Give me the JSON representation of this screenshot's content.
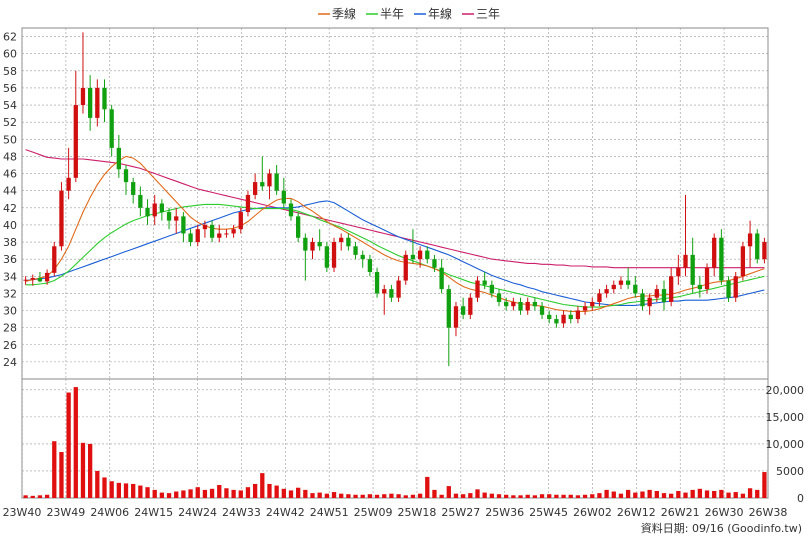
{
  "legend": [
    {
      "label": "季線",
      "color": "#e06a1a"
    },
    {
      "label": "半年",
      "color": "#2ecc2e"
    },
    {
      "label": "年線",
      "color": "#1a5fd6"
    },
    {
      "label": "三年",
      "color": "#cc1f6a"
    }
  ],
  "footer": "資料日期: 09/16  (Goodinfo.tw)",
  "colors": {
    "up": "#d01010",
    "down": "#10a010",
    "volume": "#e01010",
    "grid": "#999999"
  },
  "chart_data": [
    {
      "type": "candlestick",
      "x_tick_labels": [
        "23W40",
        "23W49",
        "24W06",
        "24W15",
        "24W24",
        "24W33",
        "24W42",
        "24W51",
        "25W09",
        "25W18",
        "25W27",
        "25W36",
        "25W45",
        "26W02",
        "26W12",
        "26W21",
        "26W30",
        "26W38"
      ],
      "ylim": [
        22,
        63
      ],
      "y_ticks": [
        24,
        26,
        28,
        30,
        32,
        34,
        36,
        38,
        40,
        42,
        44,
        46,
        48,
        50,
        52,
        54,
        56,
        58,
        60,
        62
      ],
      "grid": true,
      "legend_position": "top-center",
      "ohlc": [
        [
          33.5,
          34.0,
          33.0,
          33.6
        ],
        [
          33.6,
          34.2,
          32.9,
          33.8
        ],
        [
          33.8,
          34.5,
          33.3,
          33.4
        ],
        [
          33.4,
          34.8,
          33.0,
          34.4
        ],
        [
          34.4,
          38.0,
          34.0,
          37.5
        ],
        [
          37.5,
          45.0,
          37.0,
          44.0
        ],
        [
          44.0,
          49.0,
          43.0,
          45.5
        ],
        [
          45.5,
          58.0,
          45.0,
          54.0
        ],
        [
          54.0,
          62.5,
          53.0,
          56.0
        ],
        [
          56.0,
          57.5,
          51.0,
          52.5
        ],
        [
          52.5,
          57.0,
          51.5,
          56.0
        ],
        [
          56.0,
          57.0,
          52.0,
          53.5
        ],
        [
          53.5,
          54.0,
          48.0,
          49.0
        ],
        [
          49.0,
          50.5,
          45.5,
          46.5
        ],
        [
          46.5,
          47.0,
          43.5,
          45.0
        ],
        [
          45.0,
          45.5,
          42.5,
          43.5
        ],
        [
          43.5,
          44.5,
          41.0,
          42.0
        ],
        [
          42.0,
          43.0,
          40.0,
          41.0
        ],
        [
          41.0,
          43.5,
          40.0,
          42.5
        ],
        [
          42.5,
          43.0,
          40.5,
          41.5
        ],
        [
          41.5,
          42.0,
          39.5,
          40.5
        ],
        [
          40.5,
          42.0,
          39.0,
          41.0
        ],
        [
          41.0,
          41.5,
          38.0,
          39.0
        ],
        [
          39.0,
          39.5,
          37.5,
          38.0
        ],
        [
          38.0,
          40.0,
          37.5,
          39.5
        ],
        [
          39.5,
          40.5,
          38.5,
          40.0
        ],
        [
          40.0,
          40.5,
          38.0,
          38.5
        ],
        [
          38.5,
          40.0,
          38.0,
          39.0
        ],
        [
          39.0,
          39.5,
          38.5,
          39.0
        ],
        [
          39.0,
          40.0,
          38.5,
          39.5
        ],
        [
          39.5,
          42.0,
          39.0,
          41.5
        ],
        [
          41.5,
          44.0,
          41.0,
          43.5
        ],
        [
          43.5,
          46.0,
          43.0,
          45.0
        ],
        [
          45.0,
          48.0,
          44.0,
          44.5
        ],
        [
          44.5,
          46.5,
          43.0,
          46.0
        ],
        [
          46.0,
          47.0,
          43.5,
          44.0
        ],
        [
          44.0,
          45.5,
          42.0,
          42.5
        ],
        [
          42.5,
          43.0,
          40.5,
          41.0
        ],
        [
          41.0,
          41.5,
          38.0,
          38.5
        ],
        [
          38.5,
          39.0,
          33.5,
          37.0
        ],
        [
          37.0,
          38.5,
          36.0,
          38.0
        ],
        [
          38.0,
          39.5,
          37.0,
          37.5
        ],
        [
          37.5,
          38.0,
          34.5,
          35.0
        ],
        [
          35.0,
          38.5,
          34.5,
          38.0
        ],
        [
          38.0,
          39.0,
          37.0,
          38.5
        ],
        [
          38.5,
          39.0,
          37.0,
          37.5
        ],
        [
          37.5,
          38.0,
          36.0,
          36.5
        ],
        [
          36.5,
          37.0,
          35.0,
          36.0
        ],
        [
          36.0,
          36.5,
          34.0,
          34.5
        ],
        [
          34.5,
          35.0,
          31.5,
          32.0
        ],
        [
          32.0,
          33.0,
          29.5,
          32.5
        ],
        [
          32.5,
          33.0,
          31.0,
          31.5
        ],
        [
          31.5,
          34.0,
          31.0,
          33.5
        ],
        [
          33.5,
          37.0,
          33.0,
          36.5
        ],
        [
          36.5,
          39.5,
          35.5,
          36.0
        ],
        [
          36.0,
          37.5,
          35.0,
          37.0
        ],
        [
          37.0,
          37.5,
          35.5,
          36.0
        ],
        [
          36.0,
          36.5,
          34.5,
          35.0
        ],
        [
          35.0,
          36.0,
          32.0,
          32.5
        ],
        [
          32.5,
          33.0,
          23.5,
          28.0
        ],
        [
          28.0,
          31.0,
          27.0,
          30.5
        ],
        [
          30.5,
          31.5,
          29.0,
          29.5
        ],
        [
          29.5,
          32.0,
          29.0,
          31.5
        ],
        [
          31.5,
          34.0,
          31.0,
          33.5
        ],
        [
          33.5,
          34.5,
          32.5,
          33.0
        ],
        [
          33.0,
          33.5,
          31.5,
          32.0
        ],
        [
          32.0,
          32.5,
          30.5,
          31.0
        ],
        [
          31.0,
          31.5,
          30.0,
          30.5
        ],
        [
          30.5,
          31.5,
          30.0,
          31.0
        ],
        [
          31.0,
          31.5,
          29.5,
          30.0
        ],
        [
          30.0,
          31.5,
          29.5,
          31.0
        ],
        [
          31.0,
          31.5,
          30.0,
          30.5
        ],
        [
          30.5,
          31.0,
          29.0,
          29.5
        ],
        [
          29.5,
          30.0,
          28.5,
          29.0
        ],
        [
          29.0,
          29.5,
          28.0,
          28.5
        ],
        [
          28.5,
          30.0,
          28.0,
          29.5
        ],
        [
          29.5,
          30.0,
          28.5,
          29.0
        ],
        [
          29.0,
          30.5,
          28.5,
          30.0
        ],
        [
          30.0,
          31.0,
          29.5,
          30.5
        ],
        [
          30.5,
          31.5,
          30.0,
          31.0
        ],
        [
          31.0,
          32.5,
          30.5,
          32.0
        ],
        [
          32.0,
          33.0,
          31.5,
          32.5
        ],
        [
          32.5,
          33.5,
          32.0,
          33.0
        ],
        [
          33.0,
          34.0,
          32.5,
          33.5
        ],
        [
          33.5,
          35.0,
          32.5,
          33.0
        ],
        [
          33.0,
          34.0,
          31.5,
          32.0
        ],
        [
          32.0,
          32.5,
          30.0,
          30.5
        ],
        [
          30.5,
          32.0,
          29.5,
          31.5
        ],
        [
          31.5,
          33.0,
          31.0,
          32.5
        ],
        [
          32.5,
          33.5,
          30.0,
          31.0
        ],
        [
          31.0,
          35.0,
          30.5,
          34.0
        ],
        [
          34.0,
          36.5,
          33.0,
          35.0
        ],
        [
          35.0,
          43.5,
          34.0,
          36.5
        ],
        [
          36.5,
          38.5,
          32.0,
          33.0
        ],
        [
          33.0,
          34.0,
          31.5,
          32.5
        ],
        [
          32.5,
          35.5,
          32.0,
          35.0
        ],
        [
          35.0,
          39.0,
          34.0,
          38.5
        ],
        [
          38.5,
          39.5,
          33.0,
          33.5
        ],
        [
          33.5,
          34.0,
          31.0,
          31.5
        ],
        [
          31.5,
          34.5,
          31.0,
          34.0
        ],
        [
          34.0,
          38.0,
          33.5,
          37.5
        ],
        [
          37.5,
          40.5,
          35.0,
          39.0
        ],
        [
          39.0,
          39.5,
          35.5,
          36.0
        ],
        [
          36.0,
          38.5,
          35.5,
          38.0
        ]
      ],
      "ma_quarter": [
        33.4,
        33.6,
        33.8,
        34.0,
        34.8,
        36.0,
        37.5,
        39.5,
        41.5,
        43.2,
        44.7,
        45.9,
        46.8,
        47.5,
        48.0,
        47.8,
        47.2,
        46.3,
        45.4,
        44.5,
        43.6,
        42.7,
        41.8,
        40.9,
        40.3,
        39.9,
        39.6,
        39.5,
        39.5,
        39.6,
        39.9,
        40.4,
        41.1,
        41.8,
        42.4,
        42.9,
        43.1,
        43.1,
        42.7,
        42.1,
        41.6,
        41.0,
        40.4,
        39.9,
        39.5,
        39.0,
        38.5,
        38.0,
        37.5,
        37.0,
        36.5,
        36.1,
        35.8,
        35.6,
        35.5,
        35.4,
        35.2,
        34.9,
        34.5,
        33.9,
        33.3,
        32.8,
        32.5,
        32.3,
        32.1,
        31.8,
        31.5,
        31.2,
        31.0,
        30.8,
        30.7,
        30.6,
        30.5,
        30.3,
        30.1,
        30.0,
        29.9,
        29.9,
        29.9,
        30.0,
        30.2,
        30.5,
        30.8,
        31.1,
        31.4,
        31.6,
        31.7,
        31.7,
        31.8,
        31.8,
        31.9,
        32.1,
        32.4,
        32.6,
        32.8,
        33.1,
        33.3,
        33.4,
        33.5,
        33.7,
        34.0,
        34.3,
        34.6,
        34.9
      ],
      "ma_half": [
        33.0,
        33.0,
        33.1,
        33.2,
        33.5,
        34.0,
        34.6,
        35.4,
        36.2,
        37.0,
        37.8,
        38.5,
        39.1,
        39.6,
        40.1,
        40.5,
        40.8,
        41.1,
        41.3,
        41.5,
        41.7,
        41.9,
        42.1,
        42.2,
        42.3,
        42.4,
        42.4,
        42.4,
        42.3,
        42.2,
        42.1,
        42.0,
        41.9,
        41.9,
        41.9,
        41.9,
        41.9,
        41.8,
        41.6,
        41.3,
        41.0,
        40.6,
        40.3,
        40.0,
        39.7,
        39.3,
        38.9,
        38.5,
        38.1,
        37.6,
        37.2,
        36.8,
        36.4,
        36.1,
        35.8,
        35.5,
        35.2,
        34.9,
        34.6,
        34.2,
        33.9,
        33.6,
        33.3,
        33.1,
        32.9,
        32.7,
        32.5,
        32.3,
        32.1,
        31.9,
        31.7,
        31.5,
        31.3,
        31.1,
        30.9,
        30.7,
        30.6,
        30.5,
        30.4,
        30.4,
        30.4,
        30.5,
        30.6,
        30.7,
        30.9,
        31.0,
        31.1,
        31.2,
        31.3,
        31.4,
        31.5,
        31.6,
        31.8,
        32.0,
        32.2,
        32.4,
        32.6,
        32.8,
        33.0,
        33.2,
        33.4,
        33.6,
        33.8,
        34.0
      ],
      "ma_year": [
        33.5,
        33.6,
        33.7,
        33.8,
        34.0,
        34.2,
        34.5,
        34.8,
        35.1,
        35.4,
        35.7,
        36.0,
        36.3,
        36.6,
        36.9,
        37.2,
        37.5,
        37.8,
        38.1,
        38.4,
        38.7,
        39.0,
        39.3,
        39.6,
        39.9,
        40.2,
        40.5,
        40.8,
        41.1,
        41.4,
        41.6,
        41.8,
        41.9,
        42.0,
        42.0,
        42.0,
        42.0,
        42.0,
        42.1,
        42.3,
        42.5,
        42.7,
        42.8,
        42.6,
        42.1,
        41.6,
        41.1,
        40.6,
        40.2,
        39.8,
        39.4,
        39.0,
        38.6,
        38.3,
        38.0,
        37.7,
        37.4,
        37.1,
        36.8,
        36.5,
        36.1,
        35.7,
        35.3,
        34.9,
        34.5,
        34.1,
        33.8,
        33.5,
        33.2,
        33.0,
        32.7,
        32.5,
        32.2,
        32.0,
        31.8,
        31.6,
        31.4,
        31.2,
        31.0,
        30.9,
        30.8,
        30.7,
        30.6,
        30.6,
        30.6,
        30.6,
        30.7,
        30.8,
        30.9,
        31.0,
        31.1,
        31.1,
        31.2,
        31.2,
        31.2,
        31.2,
        31.3,
        31.4,
        31.5,
        31.6,
        31.8,
        32.0,
        32.2,
        32.4
      ],
      "ma_3year": [
        48.8,
        48.5,
        48.2,
        47.9,
        47.8,
        47.7,
        47.7,
        47.7,
        47.7,
        47.6,
        47.5,
        47.4,
        47.3,
        47.2,
        47.0,
        46.8,
        46.6,
        46.3,
        46.0,
        45.7,
        45.4,
        45.1,
        44.8,
        44.5,
        44.2,
        44.0,
        43.8,
        43.6,
        43.4,
        43.2,
        43.0,
        42.8,
        42.6,
        42.4,
        42.2,
        42.0,
        41.8,
        41.6,
        41.4,
        41.2,
        41.0,
        40.8,
        40.6,
        40.4,
        40.2,
        40.0,
        39.8,
        39.6,
        39.4,
        39.2,
        39.0,
        38.8,
        38.6,
        38.4,
        38.2,
        38.0,
        37.8,
        37.6,
        37.4,
        37.2,
        37.0,
        36.8,
        36.6,
        36.4,
        36.2,
        36.0,
        35.9,
        35.8,
        35.7,
        35.6,
        35.5,
        35.5,
        35.4,
        35.4,
        35.3,
        35.3,
        35.2,
        35.2,
        35.2,
        35.1,
        35.1,
        35.1,
        35.0,
        35.0,
        35.0,
        35.0,
        35.0,
        35.0,
        35.0,
        35.0,
        35.0,
        35.0,
        35.0,
        35.0,
        35.0,
        35.0,
        35.0,
        35.0,
        35.0,
        35.0,
        35.0,
        35.0,
        35.0,
        35.0
      ]
    },
    {
      "type": "bar",
      "name": "volume",
      "ylim": [
        0,
        22000
      ],
      "y_ticks": [
        0,
        5000,
        10000,
        15000,
        20000
      ],
      "y_tick_labels": [
        "0",
        "5000",
        "10,000",
        "15,000",
        "20,000"
      ],
      "values": [
        500,
        400,
        500,
        600,
        10500,
        8500,
        19500,
        20500,
        10200,
        10000,
        5000,
        3800,
        3100,
        2800,
        2700,
        2600,
        2300,
        2000,
        1500,
        1000,
        900,
        1200,
        1400,
        1600,
        2000,
        1500,
        1700,
        2400,
        1800,
        1500,
        1400,
        2000,
        2600,
        4600,
        2600,
        2300,
        1700,
        1400,
        1900,
        1500,
        900,
        1000,
        800,
        1100,
        800,
        700,
        600,
        600,
        700,
        600,
        700,
        800,
        700,
        500,
        600,
        800,
        3900,
        1500,
        600,
        2200,
        800,
        700,
        900,
        1600,
        1000,
        800,
        700,
        600,
        500,
        500,
        600,
        500,
        700,
        700,
        600,
        600,
        600,
        500,
        600,
        700,
        900,
        1500,
        1200,
        800,
        1500,
        1000,
        1200,
        1500,
        1300,
        900,
        800,
        1300,
        1000,
        1500,
        1700,
        1400,
        1300,
        1500,
        1000,
        1100,
        800,
        1800,
        1500,
        4800
      ]
    }
  ]
}
